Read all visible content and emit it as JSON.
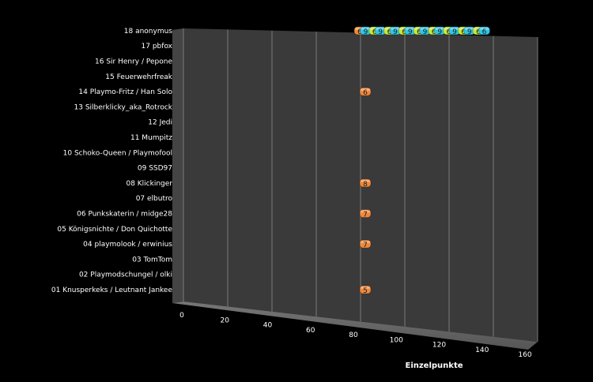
{
  "chart_data": {
    "type": "bar",
    "orientation": "horizontal",
    "style": "3d-stacked-cylinders",
    "xlabel": "Einzelpunkte",
    "xlim": [
      0,
      160
    ],
    "xticks": [
      0,
      20,
      40,
      60,
      80,
      100,
      120,
      140,
      160
    ],
    "grid": true,
    "categories": [
      "01 Knusperkeks / Leutnant Jankee",
      "02 Playmodschungel / olki",
      "03 TomTom",
      "04 playmolook / erwinius",
      "05 Königsnichte / Don Quichotte",
      "06 Punkskaterin / midge28",
      "07 elbutro",
      "08 Klickinger",
      "09 SSD97",
      "10 Schoko-Queen / Playmofool",
      "11 Mumpitz",
      "12 Jedi",
      "13 Silberklicky_aka_Rotrock",
      "14 Playmo-Fritz / Han Solo",
      "15 Feuerwehrfreak",
      "16 Sir Henry / Pepone",
      "17 pbfox",
      "18 anonymus"
    ],
    "rows": [
      {
        "category": "01 Knusperkeks / Leutnant Jankee",
        "segments": [
          5
        ]
      },
      {
        "category": "02 Playmodschungel / olki",
        "segments": []
      },
      {
        "category": "03 TomTom",
        "segments": []
      },
      {
        "category": "04 playmolook / erwinius",
        "segments": [
          7
        ]
      },
      {
        "category": "05 Königsnichte / Don Quichotte",
        "segments": []
      },
      {
        "category": "06 Punkskaterin / midge28",
        "segments": [
          7
        ]
      },
      {
        "category": "07 elbutro",
        "segments": []
      },
      {
        "category": "08 Klickinger",
        "segments": [
          8
        ]
      },
      {
        "category": "09 SSD97",
        "segments": []
      },
      {
        "category": "10 Schoko-Queen / Playmofool",
        "segments": []
      },
      {
        "category": "11 Mumpitz",
        "segments": []
      },
      {
        "category": "12 Jedi",
        "segments": []
      },
      {
        "category": "13 Silberklicky_aka_Rotrock",
        "segments": []
      },
      {
        "category": "14 Playmo-Fritz / Han Solo",
        "segments": [
          6
        ]
      },
      {
        "category": "15 Feuerwehrfreak",
        "segments": []
      },
      {
        "category": "16 Sir Henry / Pepone",
        "segments": []
      },
      {
        "category": "17 pbfox",
        "segments": []
      },
      {
        "category": "18 anonymus",
        "segments": [
          6,
          9,
          6,
          9,
          6,
          9,
          6,
          9,
          6,
          9,
          6,
          9,
          6,
          9,
          6,
          9,
          6,
          6
        ]
      }
    ],
    "colors": [
      "#f0883a",
      "#2ec8e8",
      "#c6e83a",
      "#3ad2c8"
    ]
  }
}
